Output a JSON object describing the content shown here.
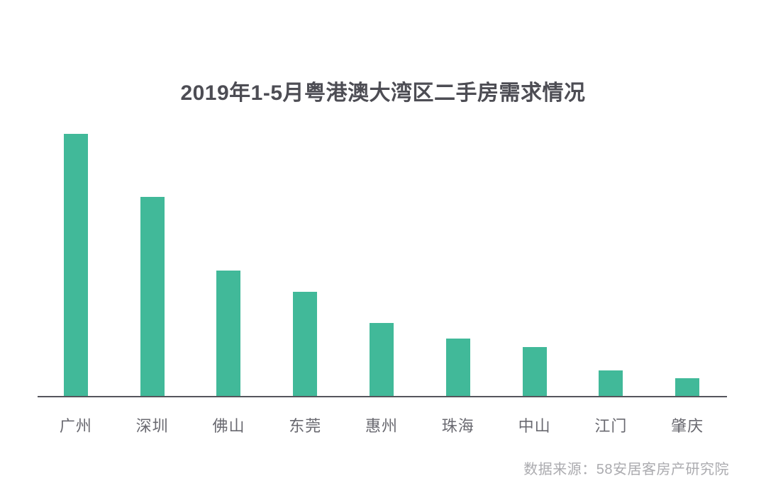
{
  "chart": {
    "title": "2019年1-5月粤港澳大湾区二手房需求情况",
    "source": "数据来源：58安居客房产研究院"
  },
  "chart_data": {
    "type": "bar",
    "title": "2019年1-5月粤港澳大湾区二手房需求情况",
    "categories": [
      "广州",
      "深圳",
      "佛山",
      "东莞",
      "惠州",
      "珠海",
      "中山",
      "江门",
      "肇庆"
    ],
    "values": [
      100,
      76,
      48,
      40,
      28,
      22,
      19,
      10,
      7
    ],
    "value_scale": "relative index, max bar (广州) = 100; chart displays no numeric axis",
    "xlabel": "",
    "ylabel": "",
    "ylim": [
      0,
      100
    ],
    "grid": false,
    "legend": false,
    "bar_color": "#41b999",
    "source": "数据来源：58安居客房产研究院"
  },
  "colors": {
    "background": "#ffffff",
    "bar": "#41b999",
    "title_text": "#4d4d54",
    "axis_line": "#55555c",
    "tick_text": "#696970",
    "source_text": "#ababaf"
  }
}
